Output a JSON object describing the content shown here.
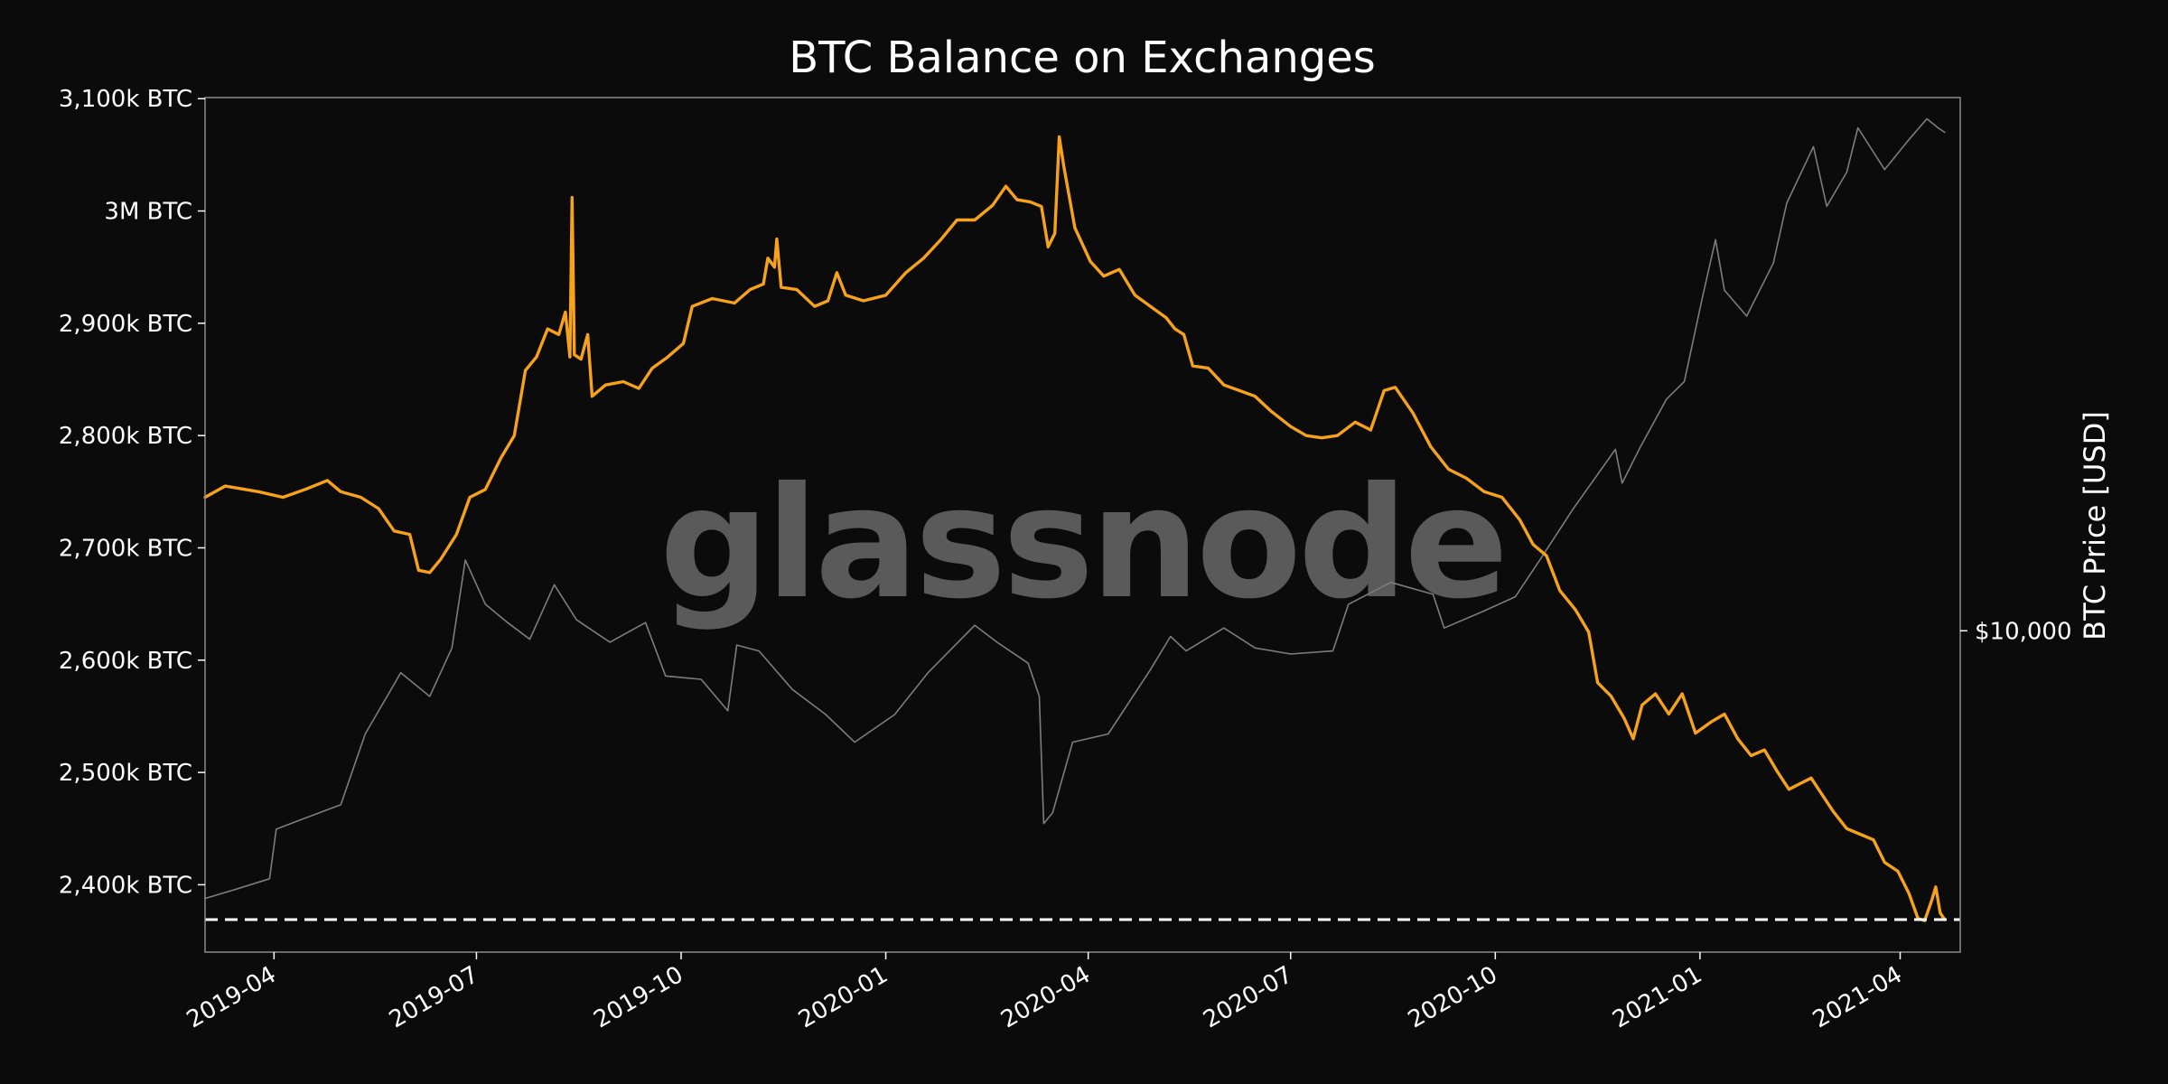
{
  "chart_data": {
    "type": "line",
    "title": "BTC Balance on Exchanges",
    "watermark": "glassnode",
    "x_ticks": [
      "2019-04",
      "2019-07",
      "2019-10",
      "2020-01",
      "2020-04",
      "2020-07",
      "2020-10",
      "2021-01",
      "2021-04"
    ],
    "x_range": [
      "2019-03-01",
      "2021-04-28"
    ],
    "y_left": {
      "ticks": [
        2400000,
        2500000,
        2600000,
        2700000,
        2800000,
        2900000,
        3000000,
        3100000
      ],
      "tick_labels": [
        "2,400k BTC",
        "2,500k BTC",
        "2,600k BTC",
        "2,700k BTC",
        "2,800k BTC",
        "2,900k BTC",
        "3M BTC",
        "3,100k BTC"
      ],
      "range": [
        2340000,
        3101000
      ]
    },
    "y_right": {
      "label": "BTC Price [USD]",
      "scale": "log",
      "ticks": [
        10000
      ],
      "tick_labels": [
        "$10,000"
      ],
      "range": [
        3150,
        68000
      ]
    },
    "reference_line": {
      "value": 2369000,
      "style": "dashed",
      "color": "#ffffff"
    },
    "series": [
      {
        "color": "#f7a21b",
        "axis": "left",
        "points": [
          [
            "2019-03-01",
            2745000
          ],
          [
            "2019-03-10",
            2755000
          ],
          [
            "2019-03-25",
            2750000
          ],
          [
            "2019-04-05",
            2745000
          ],
          [
            "2019-04-15",
            2752000
          ],
          [
            "2019-04-25",
            2760000
          ],
          [
            "2019-05-01",
            2750000
          ],
          [
            "2019-05-10",
            2745000
          ],
          [
            "2019-05-18",
            2735000
          ],
          [
            "2019-05-25",
            2715000
          ],
          [
            "2019-06-01",
            2712000
          ],
          [
            "2019-06-05",
            2680000
          ],
          [
            "2019-06-10",
            2678000
          ],
          [
            "2019-06-15",
            2690000
          ],
          [
            "2019-06-22",
            2712000
          ],
          [
            "2019-06-28",
            2745000
          ],
          [
            "2019-07-05",
            2752000
          ],
          [
            "2019-07-12",
            2780000
          ],
          [
            "2019-07-18",
            2800000
          ],
          [
            "2019-07-23",
            2858000
          ],
          [
            "2019-07-28",
            2870000
          ],
          [
            "2019-08-02",
            2895000
          ],
          [
            "2019-08-07",
            2890000
          ],
          [
            "2019-08-10",
            2910000
          ],
          [
            "2019-08-12",
            2870000
          ],
          [
            "2019-08-13",
            3012000
          ],
          [
            "2019-08-14",
            2872000
          ],
          [
            "2019-08-17",
            2868000
          ],
          [
            "2019-08-20",
            2890000
          ],
          [
            "2019-08-22",
            2835000
          ],
          [
            "2019-08-28",
            2845000
          ],
          [
            "2019-09-05",
            2848000
          ],
          [
            "2019-09-12",
            2842000
          ],
          [
            "2019-09-18",
            2860000
          ],
          [
            "2019-09-25",
            2870000
          ],
          [
            "2019-10-02",
            2882000
          ],
          [
            "2019-10-06",
            2915000
          ],
          [
            "2019-10-15",
            2922000
          ],
          [
            "2019-10-25",
            2918000
          ],
          [
            "2019-11-01",
            2930000
          ],
          [
            "2019-11-07",
            2935000
          ],
          [
            "2019-11-09",
            2958000
          ],
          [
            "2019-11-12",
            2950000
          ],
          [
            "2019-11-13",
            2975000
          ],
          [
            "2019-11-15",
            2932000
          ],
          [
            "2019-11-22",
            2930000
          ],
          [
            "2019-11-30",
            2915000
          ],
          [
            "2019-12-06",
            2920000
          ],
          [
            "2019-12-10",
            2945000
          ],
          [
            "2019-12-14",
            2925000
          ],
          [
            "2019-12-22",
            2920000
          ],
          [
            "2020-01-01",
            2925000
          ],
          [
            "2020-01-10",
            2945000
          ],
          [
            "2020-01-18",
            2958000
          ],
          [
            "2020-01-26",
            2975000
          ],
          [
            "2020-02-02",
            2992000
          ],
          [
            "2020-02-10",
            2992000
          ],
          [
            "2020-02-18",
            3005000
          ],
          [
            "2020-02-24",
            3022000
          ],
          [
            "2020-02-29",
            3010000
          ],
          [
            "2020-03-06",
            3008000
          ],
          [
            "2020-03-11",
            3004000
          ],
          [
            "2020-03-14",
            2968000
          ],
          [
            "2020-03-17",
            2980000
          ],
          [
            "2020-03-19",
            3066000
          ],
          [
            "2020-03-21",
            3040000
          ],
          [
            "2020-03-26",
            2985000
          ],
          [
            "2020-04-02",
            2955000
          ],
          [
            "2020-04-08",
            2942000
          ],
          [
            "2020-04-15",
            2948000
          ],
          [
            "2020-04-22",
            2925000
          ],
          [
            "2020-04-29",
            2915000
          ],
          [
            "2020-05-06",
            2905000
          ],
          [
            "2020-05-10",
            2895000
          ],
          [
            "2020-05-14",
            2890000
          ],
          [
            "2020-05-18",
            2862000
          ],
          [
            "2020-05-25",
            2860000
          ],
          [
            "2020-06-01",
            2845000
          ],
          [
            "2020-06-08",
            2840000
          ],
          [
            "2020-06-15",
            2835000
          ],
          [
            "2020-06-22",
            2822000
          ],
          [
            "2020-07-01",
            2808000
          ],
          [
            "2020-07-08",
            2800000
          ],
          [
            "2020-07-15",
            2798000
          ],
          [
            "2020-07-22",
            2800000
          ],
          [
            "2020-07-30",
            2812000
          ],
          [
            "2020-08-06",
            2805000
          ],
          [
            "2020-08-12",
            2840000
          ],
          [
            "2020-08-17",
            2843000
          ],
          [
            "2020-08-25",
            2820000
          ],
          [
            "2020-09-02",
            2790000
          ],
          [
            "2020-09-10",
            2770000
          ],
          [
            "2020-09-18",
            2762000
          ],
          [
            "2020-09-26",
            2750000
          ],
          [
            "2020-10-04",
            2745000
          ],
          [
            "2020-10-12",
            2725000
          ],
          [
            "2020-10-18",
            2703000
          ],
          [
            "2020-10-24",
            2693000
          ],
          [
            "2020-10-30",
            2662000
          ],
          [
            "2020-11-06",
            2645000
          ],
          [
            "2020-11-12",
            2625000
          ],
          [
            "2020-11-16",
            2580000
          ],
          [
            "2020-11-22",
            2568000
          ],
          [
            "2020-11-28",
            2548000
          ],
          [
            "2020-12-02",
            2530000
          ],
          [
            "2020-12-06",
            2560000
          ],
          [
            "2020-12-12",
            2570000
          ],
          [
            "2020-12-18",
            2552000
          ],
          [
            "2020-12-24",
            2570000
          ],
          [
            "2020-12-30",
            2535000
          ],
          [
            "2021-01-06",
            2545000
          ],
          [
            "2021-01-12",
            2552000
          ],
          [
            "2021-01-18",
            2530000
          ],
          [
            "2021-01-24",
            2515000
          ],
          [
            "2021-01-30",
            2520000
          ],
          [
            "2021-02-05",
            2500000
          ],
          [
            "2021-02-10",
            2485000
          ],
          [
            "2021-02-15",
            2490000
          ],
          [
            "2021-02-20",
            2495000
          ],
          [
            "2021-02-25",
            2480000
          ],
          [
            "2021-03-02",
            2465000
          ],
          [
            "2021-03-08",
            2450000
          ],
          [
            "2021-03-14",
            2445000
          ],
          [
            "2021-03-20",
            2440000
          ],
          [
            "2021-03-25",
            2420000
          ],
          [
            "2021-03-31",
            2412000
          ],
          [
            "2021-04-05",
            2392000
          ],
          [
            "2021-04-09",
            2370000
          ],
          [
            "2021-04-12",
            2368000
          ],
          [
            "2021-04-15",
            2385000
          ],
          [
            "2021-04-17",
            2398000
          ],
          [
            "2021-04-19",
            2375000
          ],
          [
            "2021-04-21",
            2369000
          ]
        ]
      },
      {
        "color": "#7d7d7d",
        "axis": "right",
        "points": [
          [
            "2019-03-01",
            3820
          ],
          [
            "2019-03-15",
            3950
          ],
          [
            "2019-03-30",
            4100
          ],
          [
            "2019-04-02",
            4900
          ],
          [
            "2019-04-15",
            5100
          ],
          [
            "2019-05-01",
            5350
          ],
          [
            "2019-05-12",
            6900
          ],
          [
            "2019-05-28",
            8600
          ],
          [
            "2019-06-10",
            7900
          ],
          [
            "2019-06-20",
            9400
          ],
          [
            "2019-06-26",
            12900
          ],
          [
            "2019-07-05",
            11000
          ],
          [
            "2019-07-15",
            10300
          ],
          [
            "2019-07-25",
            9700
          ],
          [
            "2019-08-05",
            11800
          ],
          [
            "2019-08-15",
            10400
          ],
          [
            "2019-08-30",
            9600
          ],
          [
            "2019-09-15",
            10300
          ],
          [
            "2019-09-24",
            8500
          ],
          [
            "2019-10-10",
            8400
          ],
          [
            "2019-10-22",
            7500
          ],
          [
            "2019-10-26",
            9500
          ],
          [
            "2019-11-05",
            9300
          ],
          [
            "2019-11-20",
            8100
          ],
          [
            "2019-12-05",
            7400
          ],
          [
            "2019-12-18",
            6700
          ],
          [
            "2020-01-05",
            7400
          ],
          [
            "2020-01-20",
            8600
          ],
          [
            "2020-02-10",
            10200
          ],
          [
            "2020-02-20",
            9600
          ],
          [
            "2020-03-05",
            8900
          ],
          [
            "2020-03-10",
            7900
          ],
          [
            "2020-03-12",
            5000
          ],
          [
            "2020-03-16",
            5200
          ],
          [
            "2020-03-25",
            6700
          ],
          [
            "2020-04-10",
            6900
          ],
          [
            "2020-04-29",
            8700
          ],
          [
            "2020-05-08",
            9800
          ],
          [
            "2020-05-15",
            9300
          ],
          [
            "2020-06-01",
            10100
          ],
          [
            "2020-06-15",
            9400
          ],
          [
            "2020-07-01",
            9200
          ],
          [
            "2020-07-20",
            9300
          ],
          [
            "2020-07-27",
            11000
          ],
          [
            "2020-08-15",
            11900
          ],
          [
            "2020-09-03",
            11400
          ],
          [
            "2020-09-08",
            10100
          ],
          [
            "2020-09-25",
            10700
          ],
          [
            "2020-10-10",
            11300
          ],
          [
            "2020-10-21",
            12900
          ],
          [
            "2020-11-05",
            15500
          ],
          [
            "2020-11-24",
            19200
          ],
          [
            "2020-11-27",
            17000
          ],
          [
            "2020-12-05",
            19300
          ],
          [
            "2020-12-17",
            23000
          ],
          [
            "2020-12-25",
            24500
          ],
          [
            "2021-01-02",
            33000
          ],
          [
            "2021-01-08",
            40800
          ],
          [
            "2021-01-12",
            34000
          ],
          [
            "2021-01-22",
            31000
          ],
          [
            "2021-02-03",
            37500
          ],
          [
            "2021-02-09",
            46500
          ],
          [
            "2021-02-21",
            57000
          ],
          [
            "2021-02-27",
            46000
          ],
          [
            "2021-03-08",
            52000
          ],
          [
            "2021-03-13",
            61000
          ],
          [
            "2021-03-25",
            52500
          ],
          [
            "2021-04-05",
            58500
          ],
          [
            "2021-04-13",
            63000
          ],
          [
            "2021-04-18",
            61000
          ],
          [
            "2021-04-21",
            60000
          ]
        ]
      }
    ]
  }
}
